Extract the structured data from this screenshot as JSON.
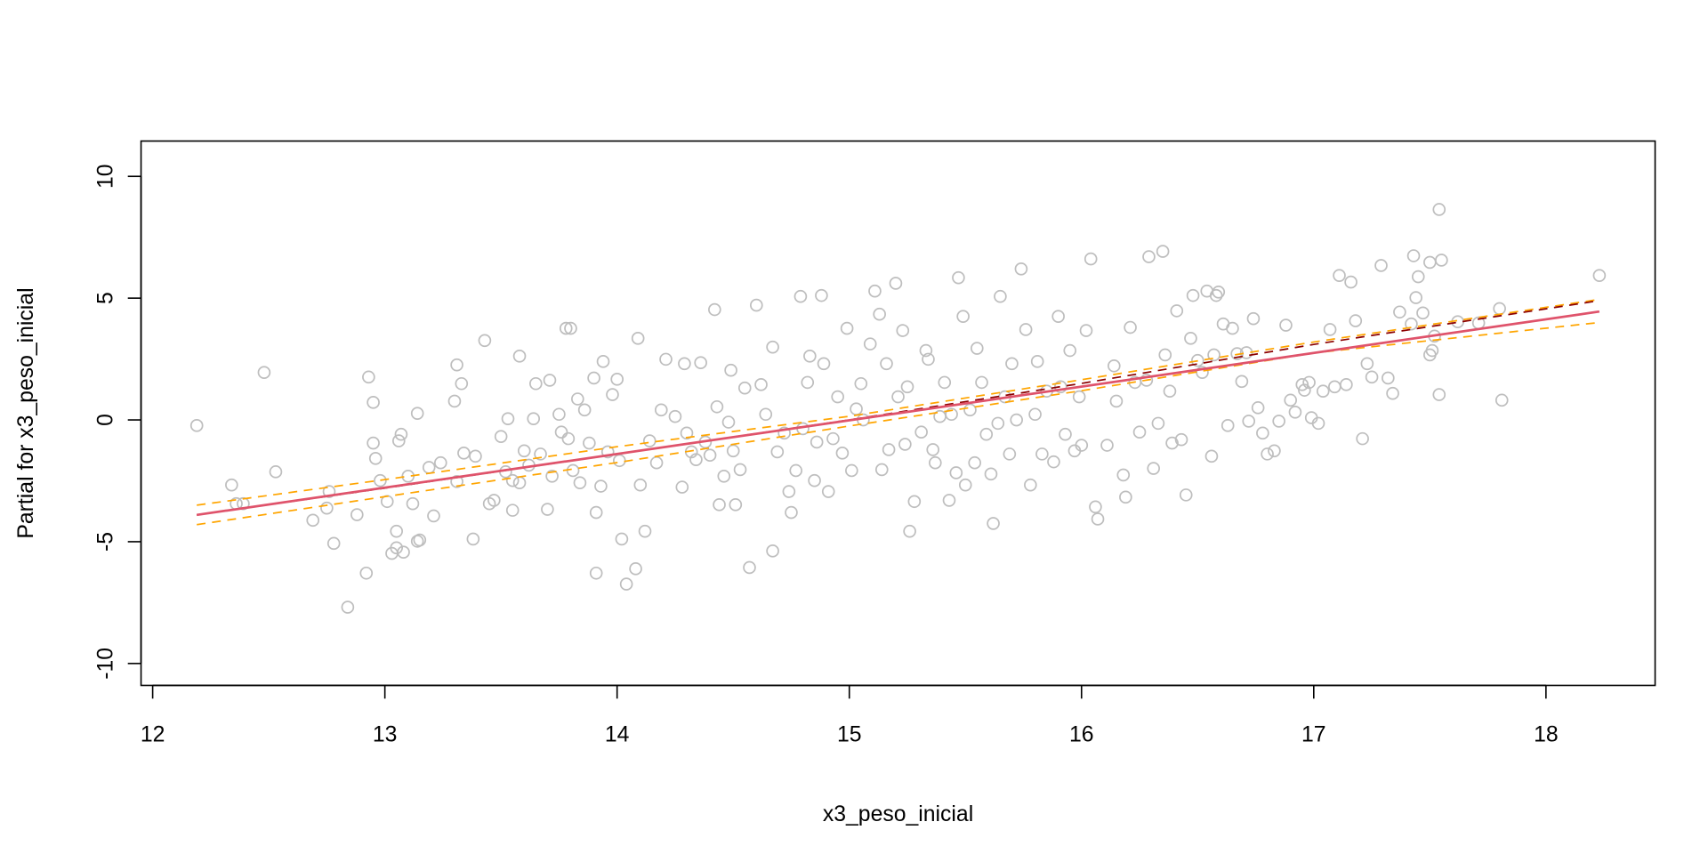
{
  "chart_data": {
    "type": "scatter",
    "title": "",
    "xlabel": "x3_peso_inicial",
    "ylabel": "Partial for x3_peso_inicial",
    "xlim": [
      11.95,
      18.47
    ],
    "ylim": [
      -10.9,
      11.45
    ],
    "x_ticks": [
      12,
      13,
      14,
      15,
      16,
      17,
      18
    ],
    "y_ticks": [
      -10,
      -5,
      0,
      5,
      10
    ],
    "grid": false,
    "legend": "none",
    "colors": {
      "points": "#BEBEBE",
      "fit": "#DF536B",
      "smooth": "#8B0000",
      "band": "#FFA500",
      "axis": "#000000"
    },
    "points": [
      [
        12.19,
        -0.23
      ],
      [
        12.34,
        -2.67
      ],
      [
        12.36,
        -3.44
      ],
      [
        12.39,
        -3.44
      ],
      [
        12.48,
        1.95
      ],
      [
        12.53,
        -2.13
      ],
      [
        12.69,
        -4.12
      ],
      [
        12.75,
        -3.62
      ],
      [
        12.76,
        -2.94
      ],
      [
        12.78,
        -5.07
      ],
      [
        12.84,
        -7.69
      ],
      [
        12.88,
        -3.89
      ],
      [
        12.92,
        -6.29
      ],
      [
        12.93,
        1.76
      ],
      [
        12.95,
        0.72
      ],
      [
        12.95,
        -0.95
      ],
      [
        12.96,
        -1.58
      ],
      [
        12.98,
        -2.49
      ],
      [
        13.01,
        -3.35
      ],
      [
        13.03,
        -5.48
      ],
      [
        13.05,
        -4.57
      ],
      [
        13.05,
        -5.25
      ],
      [
        13.06,
        -0.86
      ],
      [
        13.07,
        -0.59
      ],
      [
        13.08,
        -5.43
      ],
      [
        13.1,
        -2.31
      ],
      [
        13.12,
        -3.44
      ],
      [
        13.14,
        0.27
      ],
      [
        13.14,
        -4.98
      ],
      [
        13.15,
        -4.93
      ],
      [
        13.19,
        -1.95
      ],
      [
        13.21,
        -3.94
      ],
      [
        13.24,
        -1.76
      ],
      [
        13.3,
        0.77
      ],
      [
        13.31,
        2.26
      ],
      [
        13.33,
        1.49
      ],
      [
        13.31,
        -2.53
      ],
      [
        13.34,
        -1.36
      ],
      [
        13.38,
        -4.89
      ],
      [
        13.39,
        -1.49
      ],
      [
        13.43,
        3.26
      ],
      [
        13.45,
        -3.44
      ],
      [
        13.47,
        -3.3
      ],
      [
        13.5,
        -0.68
      ],
      [
        13.52,
        -2.13
      ],
      [
        13.53,
        0.05
      ],
      [
        13.55,
        -3.71
      ],
      [
        13.55,
        -2.49
      ],
      [
        13.58,
        -2.58
      ],
      [
        13.58,
        2.62
      ],
      [
        13.6,
        -1.27
      ],
      [
        13.62,
        -1.86
      ],
      [
        13.64,
        0.05
      ],
      [
        13.65,
        1.49
      ],
      [
        13.67,
        -1.4
      ],
      [
        13.7,
        -3.67
      ],
      [
        13.71,
        1.63
      ],
      [
        13.72,
        -2.31
      ],
      [
        13.75,
        0.23
      ],
      [
        13.76,
        -0.5
      ],
      [
        13.78,
        3.76
      ],
      [
        13.79,
        -0.77
      ],
      [
        13.8,
        3.76
      ],
      [
        13.81,
        -2.08
      ],
      [
        13.83,
        0.86
      ],
      [
        13.84,
        -2.58
      ],
      [
        13.86,
        0.41
      ],
      [
        13.88,
        -0.95
      ],
      [
        13.9,
        1.72
      ],
      [
        13.91,
        -3.8
      ],
      [
        13.93,
        -2.72
      ],
      [
        13.91,
        -6.29
      ],
      [
        13.94,
        2.4
      ],
      [
        13.96,
        -1.31
      ],
      [
        13.98,
        1.04
      ],
      [
        14.0,
        1.67
      ],
      [
        14.01,
        -1.67
      ],
      [
        14.02,
        -4.89
      ],
      [
        14.04,
        -6.74
      ],
      [
        14.08,
        -6.11
      ],
      [
        14.09,
        3.35
      ],
      [
        14.1,
        -2.67
      ],
      [
        14.12,
        -4.57
      ],
      [
        14.14,
        -0.86
      ],
      [
        14.17,
        -1.76
      ],
      [
        14.19,
        0.41
      ],
      [
        14.21,
        2.49
      ],
      [
        14.25,
        0.14
      ],
      [
        14.28,
        -2.76
      ],
      [
        14.29,
        2.31
      ],
      [
        14.3,
        -0.54
      ],
      [
        14.32,
        -1.31
      ],
      [
        14.34,
        -1.63
      ],
      [
        14.36,
        2.35
      ],
      [
        14.38,
        -0.91
      ],
      [
        14.4,
        -1.45
      ],
      [
        14.42,
        4.53
      ],
      [
        14.43,
        0.54
      ],
      [
        14.44,
        -3.48
      ],
      [
        14.46,
        -2.31
      ],
      [
        14.48,
        -0.09
      ],
      [
        14.49,
        2.04
      ],
      [
        14.5,
        -1.27
      ],
      [
        14.51,
        -3.48
      ],
      [
        14.53,
        -2.04
      ],
      [
        14.55,
        1.31
      ],
      [
        14.57,
        -6.06
      ],
      [
        14.6,
        4.71
      ],
      [
        14.62,
        1.45
      ],
      [
        14.64,
        0.23
      ],
      [
        14.67,
        2.99
      ],
      [
        14.67,
        -5.38
      ],
      [
        14.69,
        -1.31
      ],
      [
        14.72,
        -0.54
      ],
      [
        14.74,
        -2.94
      ],
      [
        14.75,
        -3.8
      ],
      [
        14.77,
        -2.08
      ],
      [
        14.79,
        5.07
      ],
      [
        14.8,
        -0.36
      ],
      [
        14.82,
        1.54
      ],
      [
        14.83,
        2.62
      ],
      [
        14.85,
        -2.49
      ],
      [
        14.86,
        -0.91
      ],
      [
        14.88,
        5.11
      ],
      [
        14.89,
        2.31
      ],
      [
        14.91,
        -2.94
      ],
      [
        14.93,
        -0.77
      ],
      [
        14.95,
        0.95
      ],
      [
        14.97,
        -1.36
      ],
      [
        14.99,
        3.76
      ],
      [
        15.01,
        -2.08
      ],
      [
        15.03,
        0.45
      ],
      [
        15.05,
        1.49
      ],
      [
        15.06,
        0.0
      ],
      [
        15.09,
        3.12
      ],
      [
        15.11,
        5.29
      ],
      [
        15.13,
        4.34
      ],
      [
        15.14,
        -2.04
      ],
      [
        15.16,
        2.31
      ],
      [
        15.17,
        -1.22
      ],
      [
        15.2,
        5.61
      ],
      [
        15.21,
        0.95
      ],
      [
        15.23,
        3.67
      ],
      [
        15.24,
        -1.0
      ],
      [
        15.25,
        1.36
      ],
      [
        15.26,
        -4.57
      ],
      [
        15.28,
        -3.35
      ],
      [
        15.31,
        -0.5
      ],
      [
        15.33,
        2.85
      ],
      [
        15.34,
        2.49
      ],
      [
        15.36,
        -1.22
      ],
      [
        15.37,
        -1.76
      ],
      [
        15.39,
        0.14
      ],
      [
        15.41,
        1.54
      ],
      [
        15.43,
        -3.3
      ],
      [
        15.44,
        0.23
      ],
      [
        15.46,
        -2.17
      ],
      [
        15.47,
        5.84
      ],
      [
        15.49,
        4.25
      ],
      [
        15.5,
        -2.67
      ],
      [
        15.52,
        0.41
      ],
      [
        15.54,
        -1.76
      ],
      [
        15.55,
        2.94
      ],
      [
        15.57,
        1.54
      ],
      [
        15.59,
        -0.59
      ],
      [
        15.61,
        -2.22
      ],
      [
        15.62,
        -4.25
      ],
      [
        15.64,
        -0.14
      ],
      [
        15.65,
        5.07
      ],
      [
        15.67,
        0.95
      ],
      [
        15.69,
        -1.4
      ],
      [
        15.7,
        2.31
      ],
      [
        15.72,
        0.0
      ],
      [
        15.74,
        6.2
      ],
      [
        15.76,
        3.71
      ],
      [
        15.78,
        -2.67
      ],
      [
        15.8,
        0.23
      ],
      [
        15.81,
        2.4
      ],
      [
        15.83,
        -1.4
      ],
      [
        15.85,
        1.18
      ],
      [
        15.88,
        -1.72
      ],
      [
        15.9,
        4.25
      ],
      [
        15.91,
        1.36
      ],
      [
        15.93,
        -0.59
      ],
      [
        15.95,
        2.85
      ],
      [
        15.97,
        -1.27
      ],
      [
        15.99,
        0.95
      ],
      [
        16.0,
        -1.04
      ],
      [
        16.02,
        3.67
      ],
      [
        16.04,
        6.61
      ],
      [
        16.06,
        -3.57
      ],
      [
        16.07,
        -4.07
      ],
      [
        16.11,
        -1.04
      ],
      [
        16.14,
        2.22
      ],
      [
        16.15,
        0.77
      ],
      [
        16.18,
        -2.26
      ],
      [
        16.19,
        -3.17
      ],
      [
        16.21,
        3.8
      ],
      [
        16.23,
        1.54
      ],
      [
        16.25,
        -0.5
      ],
      [
        16.28,
        1.63
      ],
      [
        16.29,
        6.7
      ],
      [
        16.31,
        -1.99
      ],
      [
        16.33,
        -0.14
      ],
      [
        16.35,
        6.92
      ],
      [
        16.36,
        2.67
      ],
      [
        16.38,
        1.18
      ],
      [
        16.39,
        -0.95
      ],
      [
        16.41,
        4.48
      ],
      [
        16.43,
        -0.81
      ],
      [
        16.45,
        -3.08
      ],
      [
        16.47,
        3.35
      ],
      [
        16.48,
        5.11
      ],
      [
        16.5,
        2.44
      ],
      [
        16.52,
        1.95
      ],
      [
        16.54,
        5.29
      ],
      [
        16.56,
        -1.49
      ],
      [
        16.57,
        2.67
      ],
      [
        16.58,
        5.11
      ],
      [
        16.59,
        5.25
      ],
      [
        16.61,
        3.94
      ],
      [
        16.63,
        -0.23
      ],
      [
        16.65,
        3.76
      ],
      [
        16.67,
        2.72
      ],
      [
        16.69,
        1.58
      ],
      [
        16.71,
        2.76
      ],
      [
        16.72,
        -0.05
      ],
      [
        16.74,
        4.16
      ],
      [
        16.76,
        0.5
      ],
      [
        16.78,
        -0.54
      ],
      [
        16.8,
        -1.4
      ],
      [
        16.83,
        -1.27
      ],
      [
        16.85,
        -0.05
      ],
      [
        16.88,
        3.89
      ],
      [
        16.9,
        0.81
      ],
      [
        16.92,
        0.32
      ],
      [
        16.95,
        1.45
      ],
      [
        16.96,
        1.22
      ],
      [
        16.98,
        1.54
      ],
      [
        16.99,
        0.09
      ],
      [
        17.02,
        -0.14
      ],
      [
        17.04,
        1.18
      ],
      [
        17.07,
        3.71
      ],
      [
        17.09,
        1.36
      ],
      [
        17.11,
        5.93
      ],
      [
        17.14,
        1.45
      ],
      [
        17.16,
        5.66
      ],
      [
        17.18,
        4.07
      ],
      [
        17.21,
        -0.77
      ],
      [
        17.23,
        2.31
      ],
      [
        17.25,
        1.76
      ],
      [
        17.29,
        6.34
      ],
      [
        17.32,
        1.72
      ],
      [
        17.34,
        1.09
      ],
      [
        17.37,
        4.43
      ],
      [
        17.42,
        3.94
      ],
      [
        17.45,
        5.88
      ],
      [
        17.47,
        4.39
      ],
      [
        17.5,
        2.67
      ],
      [
        17.54,
        8.64
      ],
      [
        17.43,
        6.74
      ],
      [
        17.5,
        6.47
      ],
      [
        17.55,
        6.56
      ],
      [
        17.44,
        5.02
      ],
      [
        17.54,
        1.04
      ],
      [
        17.81,
        0.81
      ],
      [
        17.8,
        4.57
      ],
      [
        17.62,
        4.03
      ],
      [
        17.71,
        3.98
      ],
      [
        17.52,
        3.44
      ],
      [
        17.51,
        2.85
      ],
      [
        18.23,
        5.93
      ]
    ],
    "lines": [
      {
        "role": "fit",
        "style": "solid",
        "points": [
          [
            12.19,
            -3.9
          ],
          [
            18.23,
            4.45
          ]
        ]
      },
      {
        "role": "smooth",
        "style": "dashed",
        "points": [
          [
            12.19,
            -3.9
          ],
          [
            13,
            -2.8
          ],
          [
            14,
            -1.4
          ],
          [
            15,
            0.0
          ],
          [
            16,
            1.5
          ],
          [
            17,
            3.1
          ],
          [
            18.23,
            4.9
          ]
        ]
      },
      {
        "role": "band-upper",
        "style": "dashed",
        "points": [
          [
            12.19,
            -3.5
          ],
          [
            13,
            -2.45
          ],
          [
            14,
            -1.1
          ],
          [
            15,
            0.15
          ],
          [
            16,
            1.65
          ],
          [
            17,
            3.2
          ],
          [
            18.23,
            4.95
          ]
        ]
      },
      {
        "role": "band-lower",
        "style": "dashed",
        "points": [
          [
            12.19,
            -4.3
          ],
          [
            13,
            -3.15
          ],
          [
            14,
            -1.75
          ],
          [
            15,
            -0.25
          ],
          [
            16,
            1.2
          ],
          [
            17,
            2.75
          ],
          [
            18.23,
            4.0
          ]
        ]
      }
    ]
  }
}
